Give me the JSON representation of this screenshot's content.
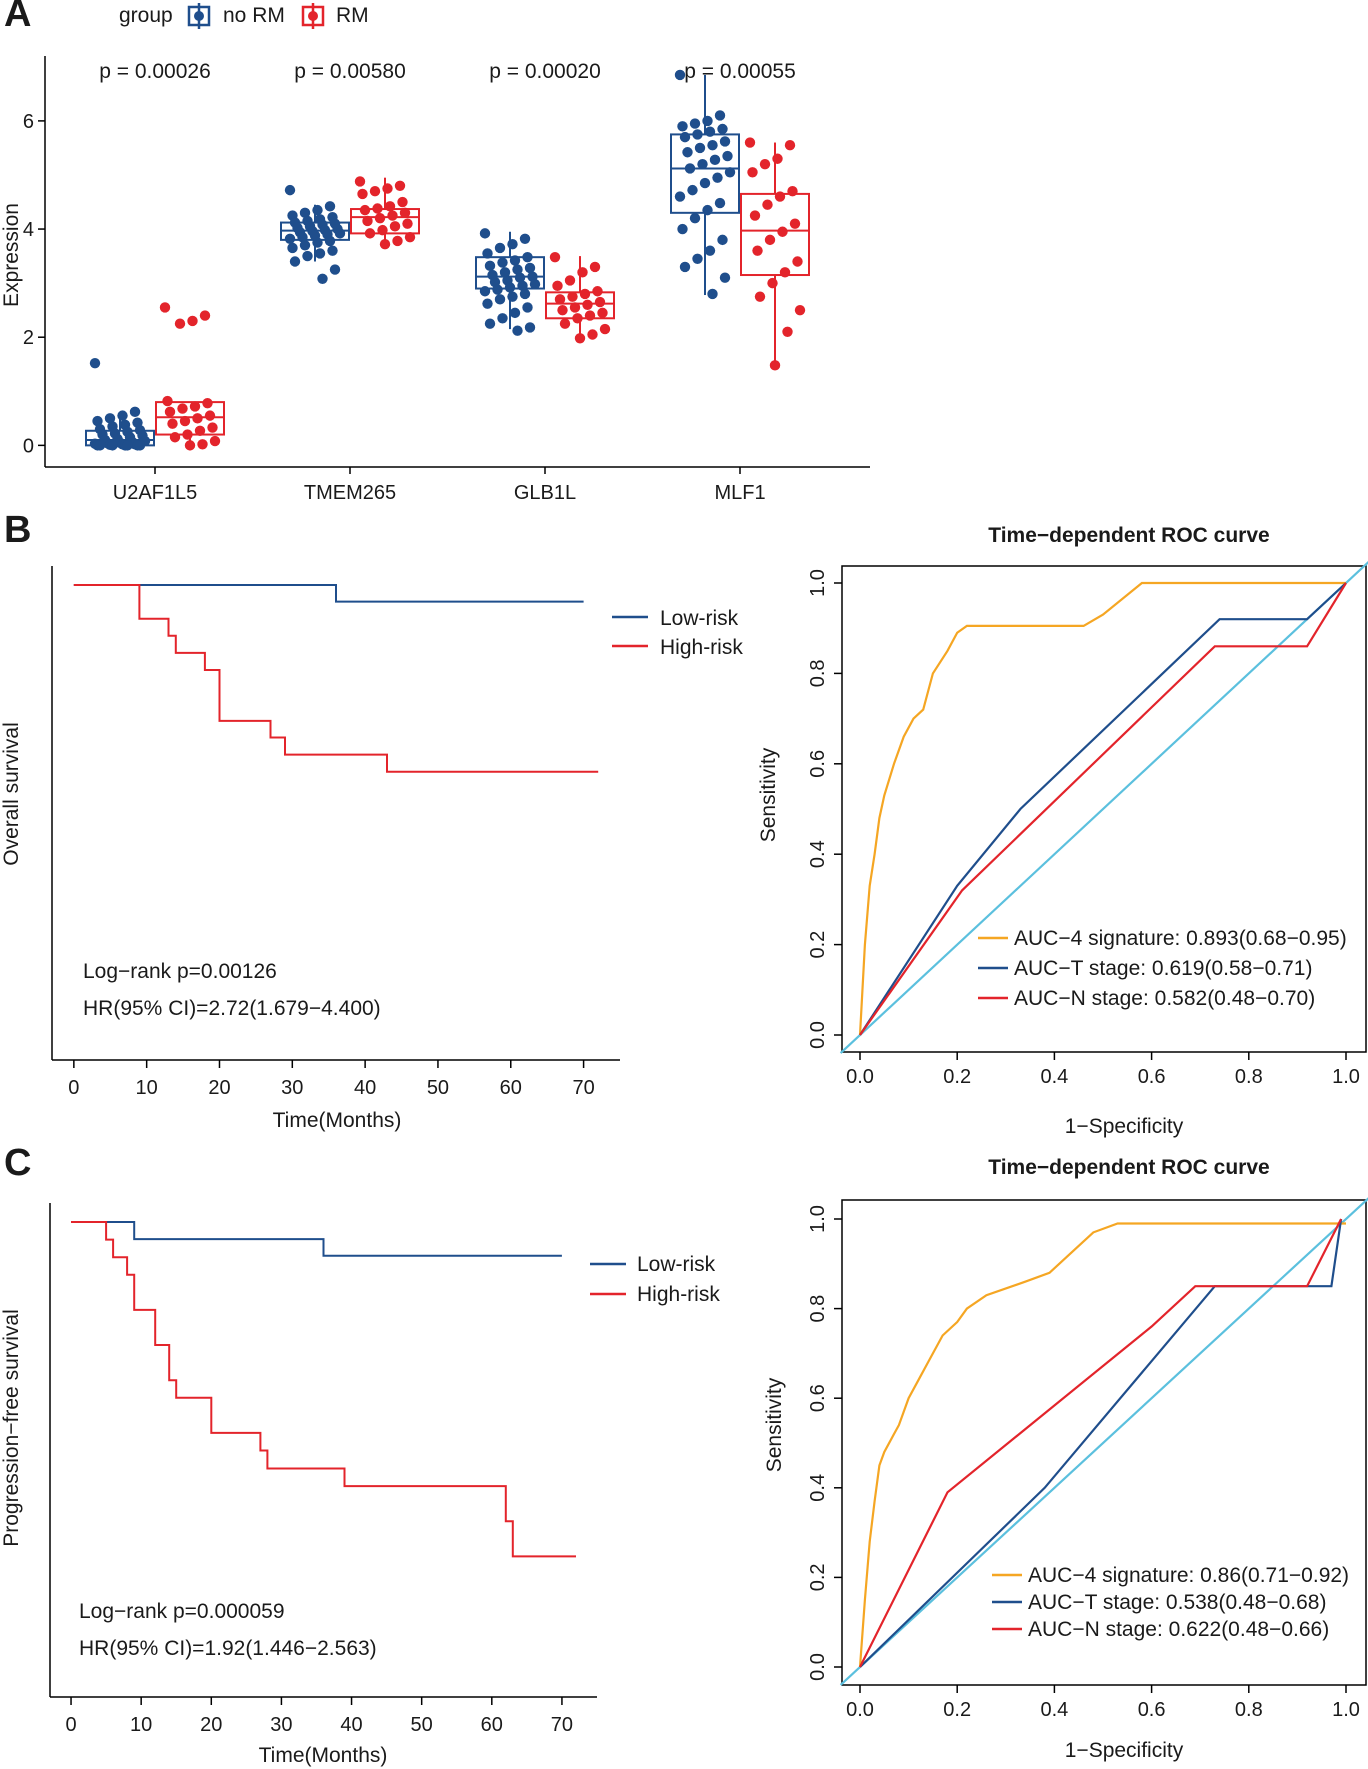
{
  "panelA": {
    "label": "A",
    "ylabel": "Expression",
    "ylim": [
      -0.4,
      7.2
    ],
    "yticks": [
      0,
      2,
      4,
      6
    ],
    "legend": {
      "title": "group",
      "entries": [
        {
          "name": "no RM",
          "color": "#1f4e8c"
        },
        {
          "name": "RM",
          "color": "#e3242b"
        }
      ]
    },
    "groups": [
      {
        "gene": "U2AF1L5",
        "p": "p = 0.00026",
        "noRM": {
          "min": 0.0,
          "q1": 0.0,
          "med": 0.1,
          "q3": 0.27,
          "max": 0.6,
          "points": [
            1.52,
            0.62,
            0.55,
            0.5,
            0.45,
            0.42,
            0.38,
            0.35,
            0.3,
            0.28,
            0.25,
            0.22,
            0.2,
            0.18,
            0.15,
            0.12,
            0.1,
            0.08,
            0.06,
            0.05,
            0.04,
            0.03,
            0.02,
            0.02,
            0.01,
            0.0,
            0.0,
            0.0,
            0.0,
            0.0,
            0.0,
            0.0
          ]
        },
        "RM": {
          "min": 0.0,
          "q1": 0.2,
          "med": 0.52,
          "q3": 0.8,
          "max": 0.8,
          "points": [
            2.55,
            2.4,
            2.3,
            2.25,
            0.82,
            0.78,
            0.72,
            0.68,
            0.62,
            0.55,
            0.5,
            0.45,
            0.4,
            0.33,
            0.27,
            0.2,
            0.15,
            0.08,
            0.02,
            0.0
          ]
        }
      },
      {
        "gene": "TMEM265",
        "p": "p = 0.00580",
        "noRM": {
          "min": 3.4,
          "q1": 3.8,
          "med": 3.97,
          "q3": 4.12,
          "max": 4.45,
          "points": [
            4.72,
            4.42,
            4.35,
            4.3,
            4.25,
            4.22,
            4.18,
            4.15,
            4.12,
            4.1,
            4.08,
            4.05,
            4.02,
            4.0,
            3.98,
            3.96,
            3.94,
            3.92,
            3.9,
            3.88,
            3.85,
            3.82,
            3.78,
            3.75,
            3.7,
            3.65,
            3.6,
            3.55,
            3.5,
            3.4,
            3.25,
            3.08
          ]
        },
        "RM": {
          "min": 3.72,
          "q1": 3.92,
          "med": 4.22,
          "q3": 4.37,
          "max": 4.95,
          "points": [
            4.88,
            4.8,
            4.75,
            4.7,
            4.65,
            4.5,
            4.42,
            4.38,
            4.35,
            4.3,
            4.25,
            4.2,
            4.15,
            4.1,
            4.05,
            3.98,
            3.92,
            3.85,
            3.78,
            3.72
          ]
        }
      },
      {
        "gene": "GLB1L",
        "p": "p = 0.00020",
        "noRM": {
          "min": 2.15,
          "q1": 2.9,
          "med": 3.12,
          "q3": 3.48,
          "max": 3.95,
          "points": [
            3.92,
            3.82,
            3.72,
            3.65,
            3.55,
            3.48,
            3.42,
            3.38,
            3.32,
            3.28,
            3.25,
            3.2,
            3.15,
            3.12,
            3.1,
            3.05,
            3.02,
            2.98,
            2.95,
            2.92,
            2.88,
            2.85,
            2.8,
            2.75,
            2.7,
            2.62,
            2.55,
            2.45,
            2.35,
            2.25,
            2.18,
            2.12
          ]
        },
        "RM": {
          "min": 2.0,
          "q1": 2.35,
          "med": 2.62,
          "q3": 2.83,
          "max": 3.5,
          "points": [
            3.48,
            3.3,
            3.2,
            3.05,
            2.95,
            2.85,
            2.8,
            2.75,
            2.7,
            2.65,
            2.6,
            2.55,
            2.5,
            2.45,
            2.4,
            2.35,
            2.25,
            2.15,
            2.05,
            1.98
          ]
        }
      },
      {
        "gene": "MLF1",
        "p": "p = 0.00055",
        "noRM": {
          "min": 2.78,
          "q1": 4.3,
          "med": 5.12,
          "q3": 5.75,
          "max": 6.85,
          "points": [
            6.85,
            6.1,
            6.0,
            5.95,
            5.9,
            5.85,
            5.8,
            5.75,
            5.7,
            5.62,
            5.55,
            5.5,
            5.42,
            5.35,
            5.28,
            5.2,
            5.12,
            5.05,
            4.95,
            4.85,
            4.72,
            4.6,
            4.48,
            4.35,
            4.2,
            4.0,
            3.8,
            3.6,
            3.45,
            3.3,
            3.1,
            2.8
          ]
        },
        "RM": {
          "min": 1.48,
          "q1": 3.15,
          "med": 3.97,
          "q3": 4.65,
          "max": 5.6,
          "points": [
            5.6,
            5.55,
            5.3,
            5.2,
            5.05,
            4.7,
            4.6,
            4.45,
            4.25,
            4.1,
            3.95,
            3.8,
            3.6,
            3.4,
            3.2,
            3.0,
            2.75,
            2.5,
            2.1,
            1.48
          ]
        }
      }
    ]
  },
  "panelB": {
    "label": "B",
    "km": {
      "ylabel": "Overall survival",
      "xlabel": "Time(Months)",
      "xticks": [
        0,
        10,
        20,
        30,
        40,
        50,
        60,
        70
      ],
      "xlim": [
        -3,
        75
      ],
      "ylim": [
        0,
        1.04
      ],
      "legend": [
        "Low-risk",
        "High-risk"
      ],
      "lines": [
        {
          "name": "Low-risk",
          "color": "#1f4e8c",
          "steps": [
            [
              0,
              1.0
            ],
            [
              36,
              1.0
            ],
            [
              36,
              0.965
            ],
            [
              70,
              0.965
            ]
          ]
        },
        {
          "name": "High-risk",
          "color": "#e3242b",
          "steps": [
            [
              0,
              1.0
            ],
            [
              9,
              1.0
            ],
            [
              9,
              0.929
            ],
            [
              13,
              0.929
            ],
            [
              13,
              0.893
            ],
            [
              14,
              0.893
            ],
            [
              14,
              0.857
            ],
            [
              18,
              0.857
            ],
            [
              18,
              0.821
            ],
            [
              20,
              0.821
            ],
            [
              20,
              0.714
            ],
            [
              27,
              0.714
            ],
            [
              27,
              0.679
            ],
            [
              29,
              0.679
            ],
            [
              29,
              0.643
            ],
            [
              43,
              0.643
            ],
            [
              43,
              0.607
            ],
            [
              72,
              0.607
            ]
          ]
        }
      ],
      "annotations": [
        "Log−rank p=0.00126",
        "HR(95% CI)=2.72(1.679−4.400)"
      ]
    },
    "roc": {
      "title": "Time−dependent ROC curve",
      "xlabel": "1−Specificity",
      "ylabel": "Sensitivity",
      "ticks": [
        "0.0",
        "0.2",
        "0.4",
        "0.6",
        "0.8",
        "1.0"
      ],
      "curves": [
        {
          "label": "AUC−4 signature: 0.893(0.68−0.95)",
          "color": "#f5a623",
          "points": [
            [
              0,
              0
            ],
            [
              0.01,
              0.2
            ],
            [
              0.02,
              0.33
            ],
            [
              0.03,
              0.4
            ],
            [
              0.04,
              0.48
            ],
            [
              0.05,
              0.53
            ],
            [
              0.07,
              0.6
            ],
            [
              0.09,
              0.66
            ],
            [
              0.11,
              0.7
            ],
            [
              0.13,
              0.72
            ],
            [
              0.15,
              0.8
            ],
            [
              0.18,
              0.85
            ],
            [
              0.2,
              0.89
            ],
            [
              0.22,
              0.905
            ],
            [
              0.46,
              0.905
            ],
            [
              0.5,
              0.93
            ],
            [
              0.58,
              1.0
            ],
            [
              1.0,
              1.0
            ]
          ]
        },
        {
          "label": "AUC−T stage: 0.619(0.58−0.71)",
          "color": "#1f4e8c",
          "points": [
            [
              0,
              0
            ],
            [
              0.2,
              0.33
            ],
            [
              0.33,
              0.5
            ],
            [
              0.74,
              0.92
            ],
            [
              0.92,
              0.92
            ],
            [
              1.0,
              1.0
            ]
          ]
        },
        {
          "label": "AUC−N stage: 0.582(0.48−0.70)",
          "color": "#e3242b",
          "points": [
            [
              0,
              0
            ],
            [
              0.21,
              0.32
            ],
            [
              0.73,
              0.86
            ],
            [
              0.92,
              0.86
            ],
            [
              1.0,
              1.0
            ]
          ]
        },
        {
          "label": "",
          "color": "#5bc0de",
          "points": [
            [
              0,
              0
            ],
            [
              1,
              1
            ]
          ]
        }
      ]
    }
  },
  "panelC": {
    "label": "C",
    "km": {
      "ylabel": "Progression−free survival",
      "xlabel": "Time(Months)",
      "xticks": [
        0,
        10,
        20,
        30,
        40,
        50,
        60,
        70
      ],
      "xlim": [
        -3,
        75
      ],
      "ylim": [
        0,
        1.04
      ],
      "legend": [
        "Low-risk",
        "High-risk"
      ],
      "lines": [
        {
          "name": "Low-risk",
          "color": "#1f4e8c",
          "steps": [
            [
              0,
              1.0
            ],
            [
              9,
              1.0
            ],
            [
              9,
              0.964
            ],
            [
              36,
              0.964
            ],
            [
              36,
              0.929
            ],
            [
              70,
              0.929
            ]
          ]
        },
        {
          "name": "High-risk",
          "color": "#e3242b",
          "steps": [
            [
              0,
              1.0
            ],
            [
              5,
              1.0
            ],
            [
              5,
              0.963
            ],
            [
              6,
              0.963
            ],
            [
              6,
              0.926
            ],
            [
              8,
              0.926
            ],
            [
              8,
              0.889
            ],
            [
              9,
              0.889
            ],
            [
              9,
              0.815
            ],
            [
              12,
              0.815
            ],
            [
              12,
              0.741
            ],
            [
              14,
              0.741
            ],
            [
              14,
              0.667
            ],
            [
              15,
              0.667
            ],
            [
              15,
              0.63
            ],
            [
              20,
              0.63
            ],
            [
              20,
              0.556
            ],
            [
              27,
              0.556
            ],
            [
              27,
              0.519
            ],
            [
              28,
              0.519
            ],
            [
              28,
              0.481
            ],
            [
              39,
              0.481
            ],
            [
              39,
              0.444
            ],
            [
              62,
              0.444
            ],
            [
              62,
              0.37
            ],
            [
              63,
              0.37
            ],
            [
              63,
              0.296
            ],
            [
              72,
              0.296
            ]
          ]
        }
      ],
      "annotations": [
        "Log−rank p=0.000059",
        "HR(95% CI)=1.92(1.446−2.563)"
      ]
    },
    "roc": {
      "title": "Time−dependent ROC curve",
      "xlabel": "1−Specificity",
      "ylabel": "Sensitivity",
      "ticks": [
        "0.0",
        "0.2",
        "0.4",
        "0.6",
        "0.8",
        "1.0"
      ],
      "curves": [
        {
          "label": "AUC−4 signature: 0.86(0.71−0.92)",
          "color": "#f5a623",
          "points": [
            [
              0,
              0
            ],
            [
              0.01,
              0.15
            ],
            [
              0.02,
              0.28
            ],
            [
              0.03,
              0.37
            ],
            [
              0.04,
              0.45
            ],
            [
              0.05,
              0.48
            ],
            [
              0.07,
              0.52
            ],
            [
              0.08,
              0.54
            ],
            [
              0.1,
              0.6
            ],
            [
              0.12,
              0.64
            ],
            [
              0.14,
              0.68
            ],
            [
              0.17,
              0.74
            ],
            [
              0.2,
              0.77
            ],
            [
              0.22,
              0.8
            ],
            [
              0.26,
              0.83
            ],
            [
              0.34,
              0.86
            ],
            [
              0.39,
              0.88
            ],
            [
              0.43,
              0.92
            ],
            [
              0.48,
              0.97
            ],
            [
              0.53,
              0.99
            ],
            [
              1.0,
              0.99
            ]
          ]
        },
        {
          "label": "AUC−T stage: 0.538(0.48−0.68)",
          "color": "#1f4e8c",
          "points": [
            [
              0,
              0
            ],
            [
              0.38,
              0.4
            ],
            [
              0.73,
              0.85
            ],
            [
              0.97,
              0.85
            ],
            [
              0.99,
              1.0
            ]
          ]
        },
        {
          "label": "AUC−N stage: 0.622(0.48−0.66)",
          "color": "#e3242b",
          "points": [
            [
              0,
              0
            ],
            [
              0.18,
              0.39
            ],
            [
              0.6,
              0.76
            ],
            [
              0.69,
              0.85
            ],
            [
              0.92,
              0.85
            ],
            [
              0.99,
              1.0
            ]
          ]
        },
        {
          "label": "",
          "color": "#5bc0de",
          "points": [
            [
              0,
              0
            ],
            [
              1,
              1
            ]
          ]
        }
      ]
    }
  }
}
